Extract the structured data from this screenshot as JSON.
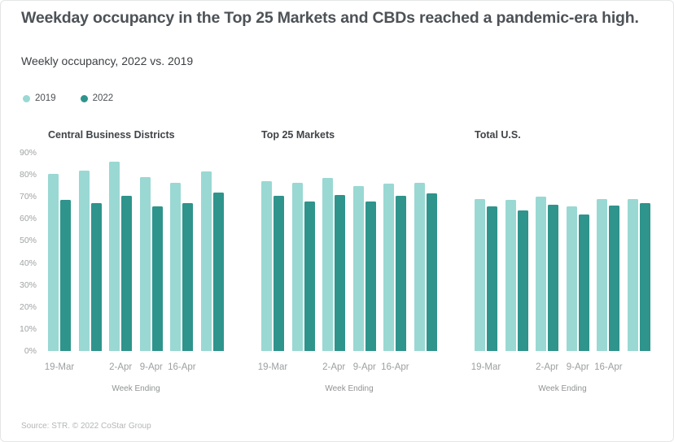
{
  "page": {
    "title": "Weekday occupancy in the Top 25 Markets and CBDs reached a pandemic-era high.",
    "subtitle": "Weekly occupancy, 2022 vs. 2019",
    "source": "Source: STR. © 2022 CoStar Group"
  },
  "legend": {
    "items": [
      {
        "label": "2019",
        "color": "#9ad8d3"
      },
      {
        "label": "2022",
        "color": "#2e948c"
      }
    ]
  },
  "colors": {
    "series": [
      "#9ad8d3",
      "#2e948c"
    ],
    "title_text": "#4d5257",
    "axis_text": "#a0a3a5"
  },
  "chart_data": [
    {
      "type": "bar",
      "title": "Central Business Districts",
      "categories": [
        "19-Mar",
        "",
        "2-Apr",
        "9-Apr",
        "16-Apr",
        ""
      ],
      "series": [
        {
          "name": "2019",
          "values": [
            80.5,
            82,
            86,
            79,
            76.5,
            81.5
          ]
        },
        {
          "name": "2022",
          "values": [
            68.5,
            67,
            70.5,
            65.5,
            67,
            72
          ]
        }
      ],
      "xlabel": "Week Ending",
      "ylim": [
        0,
        90
      ],
      "grid": false,
      "y_axis": {
        "show": true,
        "ticks": [
          {
            "label": "0%",
            "value": 0
          },
          {
            "label": "10%",
            "value": 10
          },
          {
            "label": "20%",
            "value": 20
          },
          {
            "label": "30%",
            "value": 30
          },
          {
            "label": "40%",
            "value": 40
          },
          {
            "label": "50%",
            "value": 50
          },
          {
            "label": "60%",
            "value": 60
          },
          {
            "label": "70%",
            "value": 70
          },
          {
            "label": "80%",
            "value": 80
          },
          {
            "label": "90%",
            "value": 90
          }
        ]
      }
    },
    {
      "type": "bar",
      "title": "Top 25 Markets",
      "categories": [
        "19-Mar",
        "",
        "2-Apr",
        "9-Apr",
        "16-Apr",
        ""
      ],
      "series": [
        {
          "name": "2019",
          "values": [
            77,
            76.5,
            78.5,
            75,
            76,
            76.5
          ]
        },
        {
          "name": "2022",
          "values": [
            70.5,
            68,
            71,
            68,
            70.5,
            71.5
          ]
        }
      ],
      "xlabel": "Week Ending",
      "ylim": [
        0,
        90
      ],
      "grid": false,
      "y_axis": {
        "show": false,
        "ticks": []
      }
    },
    {
      "type": "bar",
      "title": "Total U.S.",
      "categories": [
        "19-Mar",
        "",
        "2-Apr",
        "9-Apr",
        "16-Apr",
        ""
      ],
      "series": [
        {
          "name": "2019",
          "values": [
            69,
            68.5,
            70,
            65.5,
            69,
            69
          ]
        },
        {
          "name": "2022",
          "values": [
            65.5,
            64,
            66.5,
            62,
            66,
            67
          ]
        }
      ],
      "xlabel": "Week Ending",
      "ylim": [
        0,
        90
      ],
      "grid": false,
      "y_axis": {
        "show": false,
        "ticks": []
      }
    }
  ]
}
